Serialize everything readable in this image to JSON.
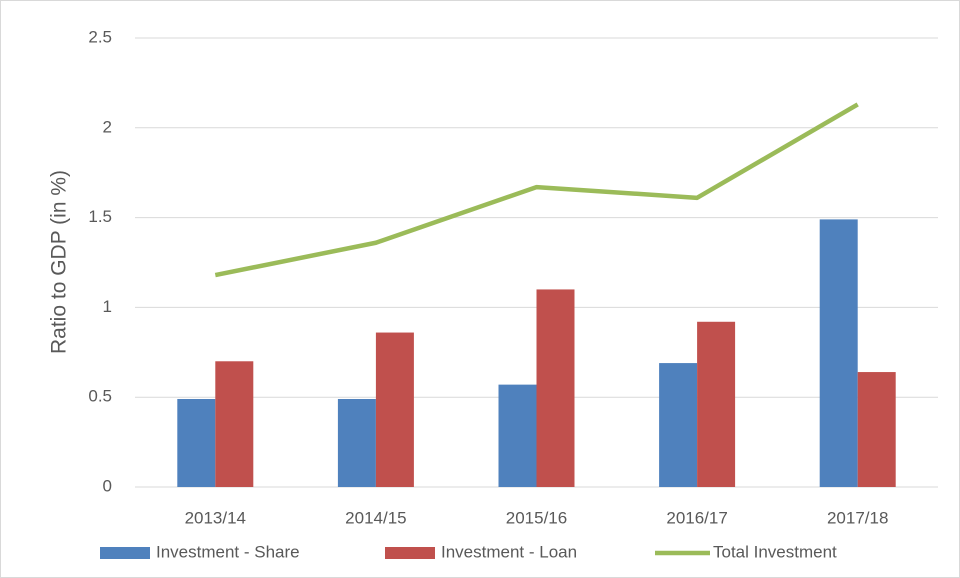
{
  "chart_data": {
    "type": "bar+line",
    "y_label": "Ratio to GDP (in %)",
    "categories": [
      "2013/14",
      "2014/15",
      "2015/16",
      "2016/17",
      "2017/18"
    ],
    "series": [
      {
        "name": "Investment - Share",
        "type": "bar",
        "color": "#4f81bd",
        "values": [
          0.49,
          0.49,
          0.57,
          0.69,
          1.49
        ]
      },
      {
        "name": "Investment - Loan",
        "type": "bar",
        "color": "#c0504d",
        "values": [
          0.7,
          0.86,
          1.1,
          0.92,
          0.64
        ]
      },
      {
        "name": "Total Investment",
        "type": "line",
        "color": "#9bbb59",
        "values": [
          1.18,
          1.36,
          1.67,
          1.61,
          2.13
        ]
      }
    ],
    "ylim": [
      0,
      2.5
    ],
    "yticks": [
      0,
      0.5,
      1,
      1.5,
      2,
      2.5
    ],
    "grid": true,
    "legend": "bottom"
  }
}
